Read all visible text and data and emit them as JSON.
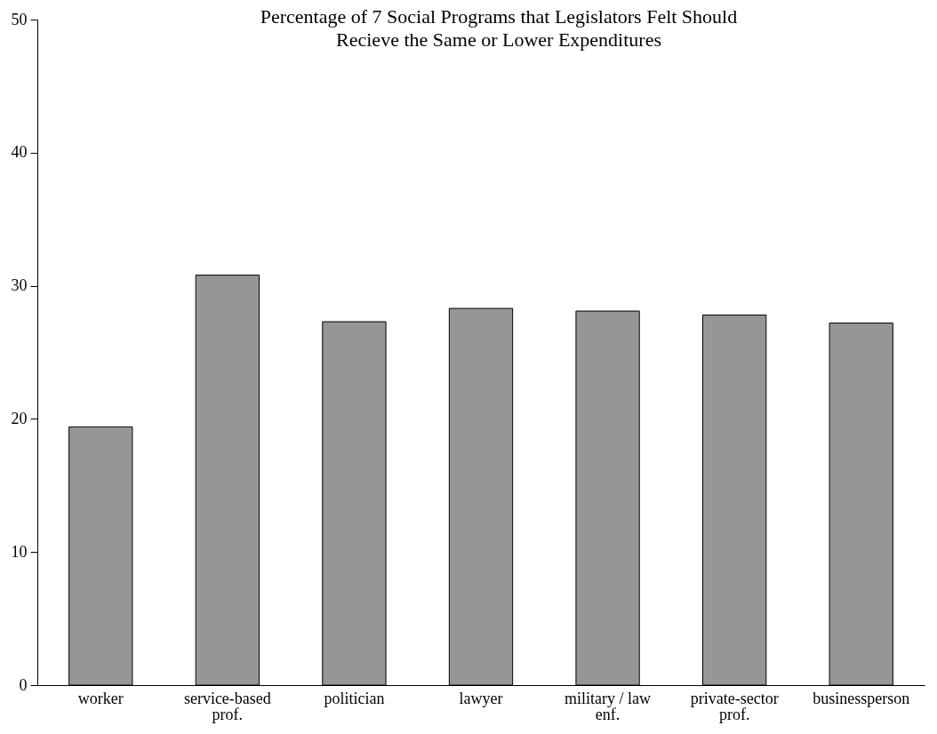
{
  "chart_data": {
    "type": "bar",
    "title": "Percentage of 7 Social Programs that Legislators Felt Should\nRecieve the Same or Lower Expenditures",
    "categories": [
      "worker",
      "service-based prof.",
      "politician",
      "lawyer",
      "military / law enf.",
      "private-sector prof.",
      "businessperson"
    ],
    "values": [
      19.4,
      30.8,
      27.3,
      28.3,
      28.1,
      27.8,
      27.2
    ],
    "color": "#969696",
    "ylim": [
      0,
      50
    ],
    "yticks": [
      0,
      10,
      20,
      30,
      40,
      50
    ],
    "grid": false
  }
}
